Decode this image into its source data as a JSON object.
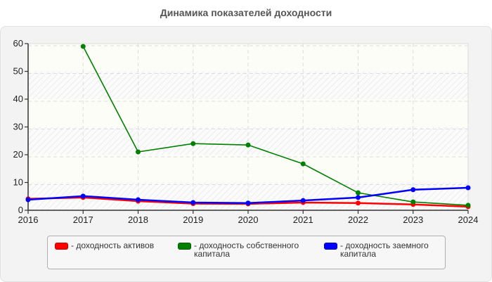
{
  "chart_data": {
    "type": "line",
    "title": "Динамика показателей доходности",
    "xlabel": "",
    "ylabel": "",
    "x": [
      "2016",
      "2017",
      "2018",
      "2019",
      "2020",
      "2021",
      "2022",
      "2023",
      "2024"
    ],
    "ylim": [
      0,
      60
    ],
    "yticks": [
      0,
      10,
      20,
      30,
      40,
      50,
      60
    ],
    "grid": true,
    "legend_position": "bottom",
    "series": [
      {
        "name": "- доходность активов",
        "color": "#ff0000",
        "values": [
          4.1,
          4.6,
          3.3,
          2.4,
          2.3,
          2.8,
          2.6,
          2.1,
          1.3
        ]
      },
      {
        "name": "- доходность собственного капитала",
        "color": "#008000",
        "values": [
          null,
          59.0,
          21.0,
          24.0,
          23.5,
          16.7,
          6.3,
          3.0,
          1.8
        ]
      },
      {
        "name": "- доходность заемного капитала",
        "color": "#0000ff",
        "values": [
          3.8,
          5.1,
          3.8,
          2.8,
          2.6,
          3.5,
          4.6,
          7.4,
          8.1
        ]
      }
    ]
  },
  "legend": {
    "items": [
      {
        "label": "- доходность активов",
        "color": "#ff0000"
      },
      {
        "label": "- доходность собственного\nкапитала",
        "color": "#008000"
      },
      {
        "label": "- доходность заемного\nкапитала",
        "color": "#0000ff"
      }
    ]
  }
}
